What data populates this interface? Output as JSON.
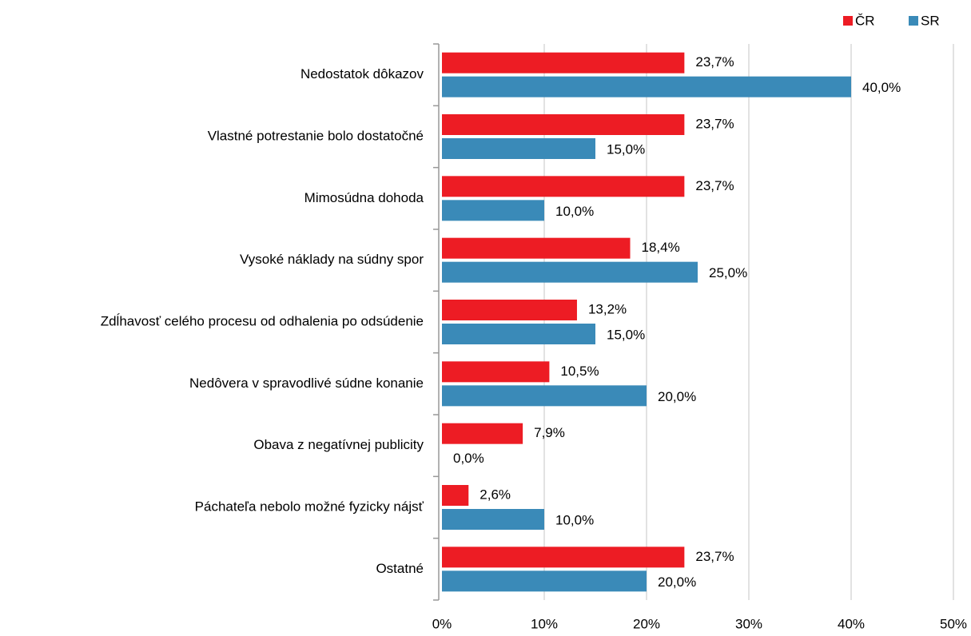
{
  "chart_data": {
    "type": "bar",
    "orientation": "horizontal",
    "categories": [
      "Nedostatok dôkazov",
      "Vlastné potrestanie bolo dostatočné",
      "Mimosúdna dohoda",
      "Vysoké náklady na súdny spor",
      "Zdĺhavosť celého procesu od odhalenia po odsúdenie",
      "Nedôvera v spravodlivé súdne konanie",
      "Obava z negatívnej publicity",
      "Páchateľa nebolo možné fyzicky nájsť",
      "Ostatné"
    ],
    "series": [
      {
        "name": "ČR",
        "color": "#ed1c24",
        "values": [
          23.7,
          23.7,
          23.7,
          18.4,
          13.2,
          10.5,
          7.9,
          2.6,
          23.7
        ],
        "value_labels": [
          "23,7%",
          "23,7%",
          "23,7%",
          "18,4%",
          "13,2%",
          "10,5%",
          "7,9%",
          "2,6%",
          "23,7%"
        ]
      },
      {
        "name": "SR",
        "color": "#3a8ab8",
        "values": [
          40.0,
          15.0,
          10.0,
          25.0,
          15.0,
          20.0,
          0.0,
          10.0,
          20.0
        ],
        "value_labels": [
          "40,0%",
          "15,0%",
          "10,0%",
          "25,0%",
          "15,0%",
          "20,0%",
          "0,0%",
          "10,0%",
          "20,0%"
        ]
      }
    ],
    "xlim": [
      0,
      50
    ],
    "xticks": [
      {
        "value": 0,
        "label": "0%"
      },
      {
        "value": 10,
        "label": "10%"
      },
      {
        "value": 20,
        "label": "20%"
      },
      {
        "value": 30,
        "label": "30%"
      },
      {
        "value": 40,
        "label": "40%"
      },
      {
        "value": 50,
        "label": "50%"
      }
    ],
    "grid": true,
    "legend": "top-right"
  }
}
